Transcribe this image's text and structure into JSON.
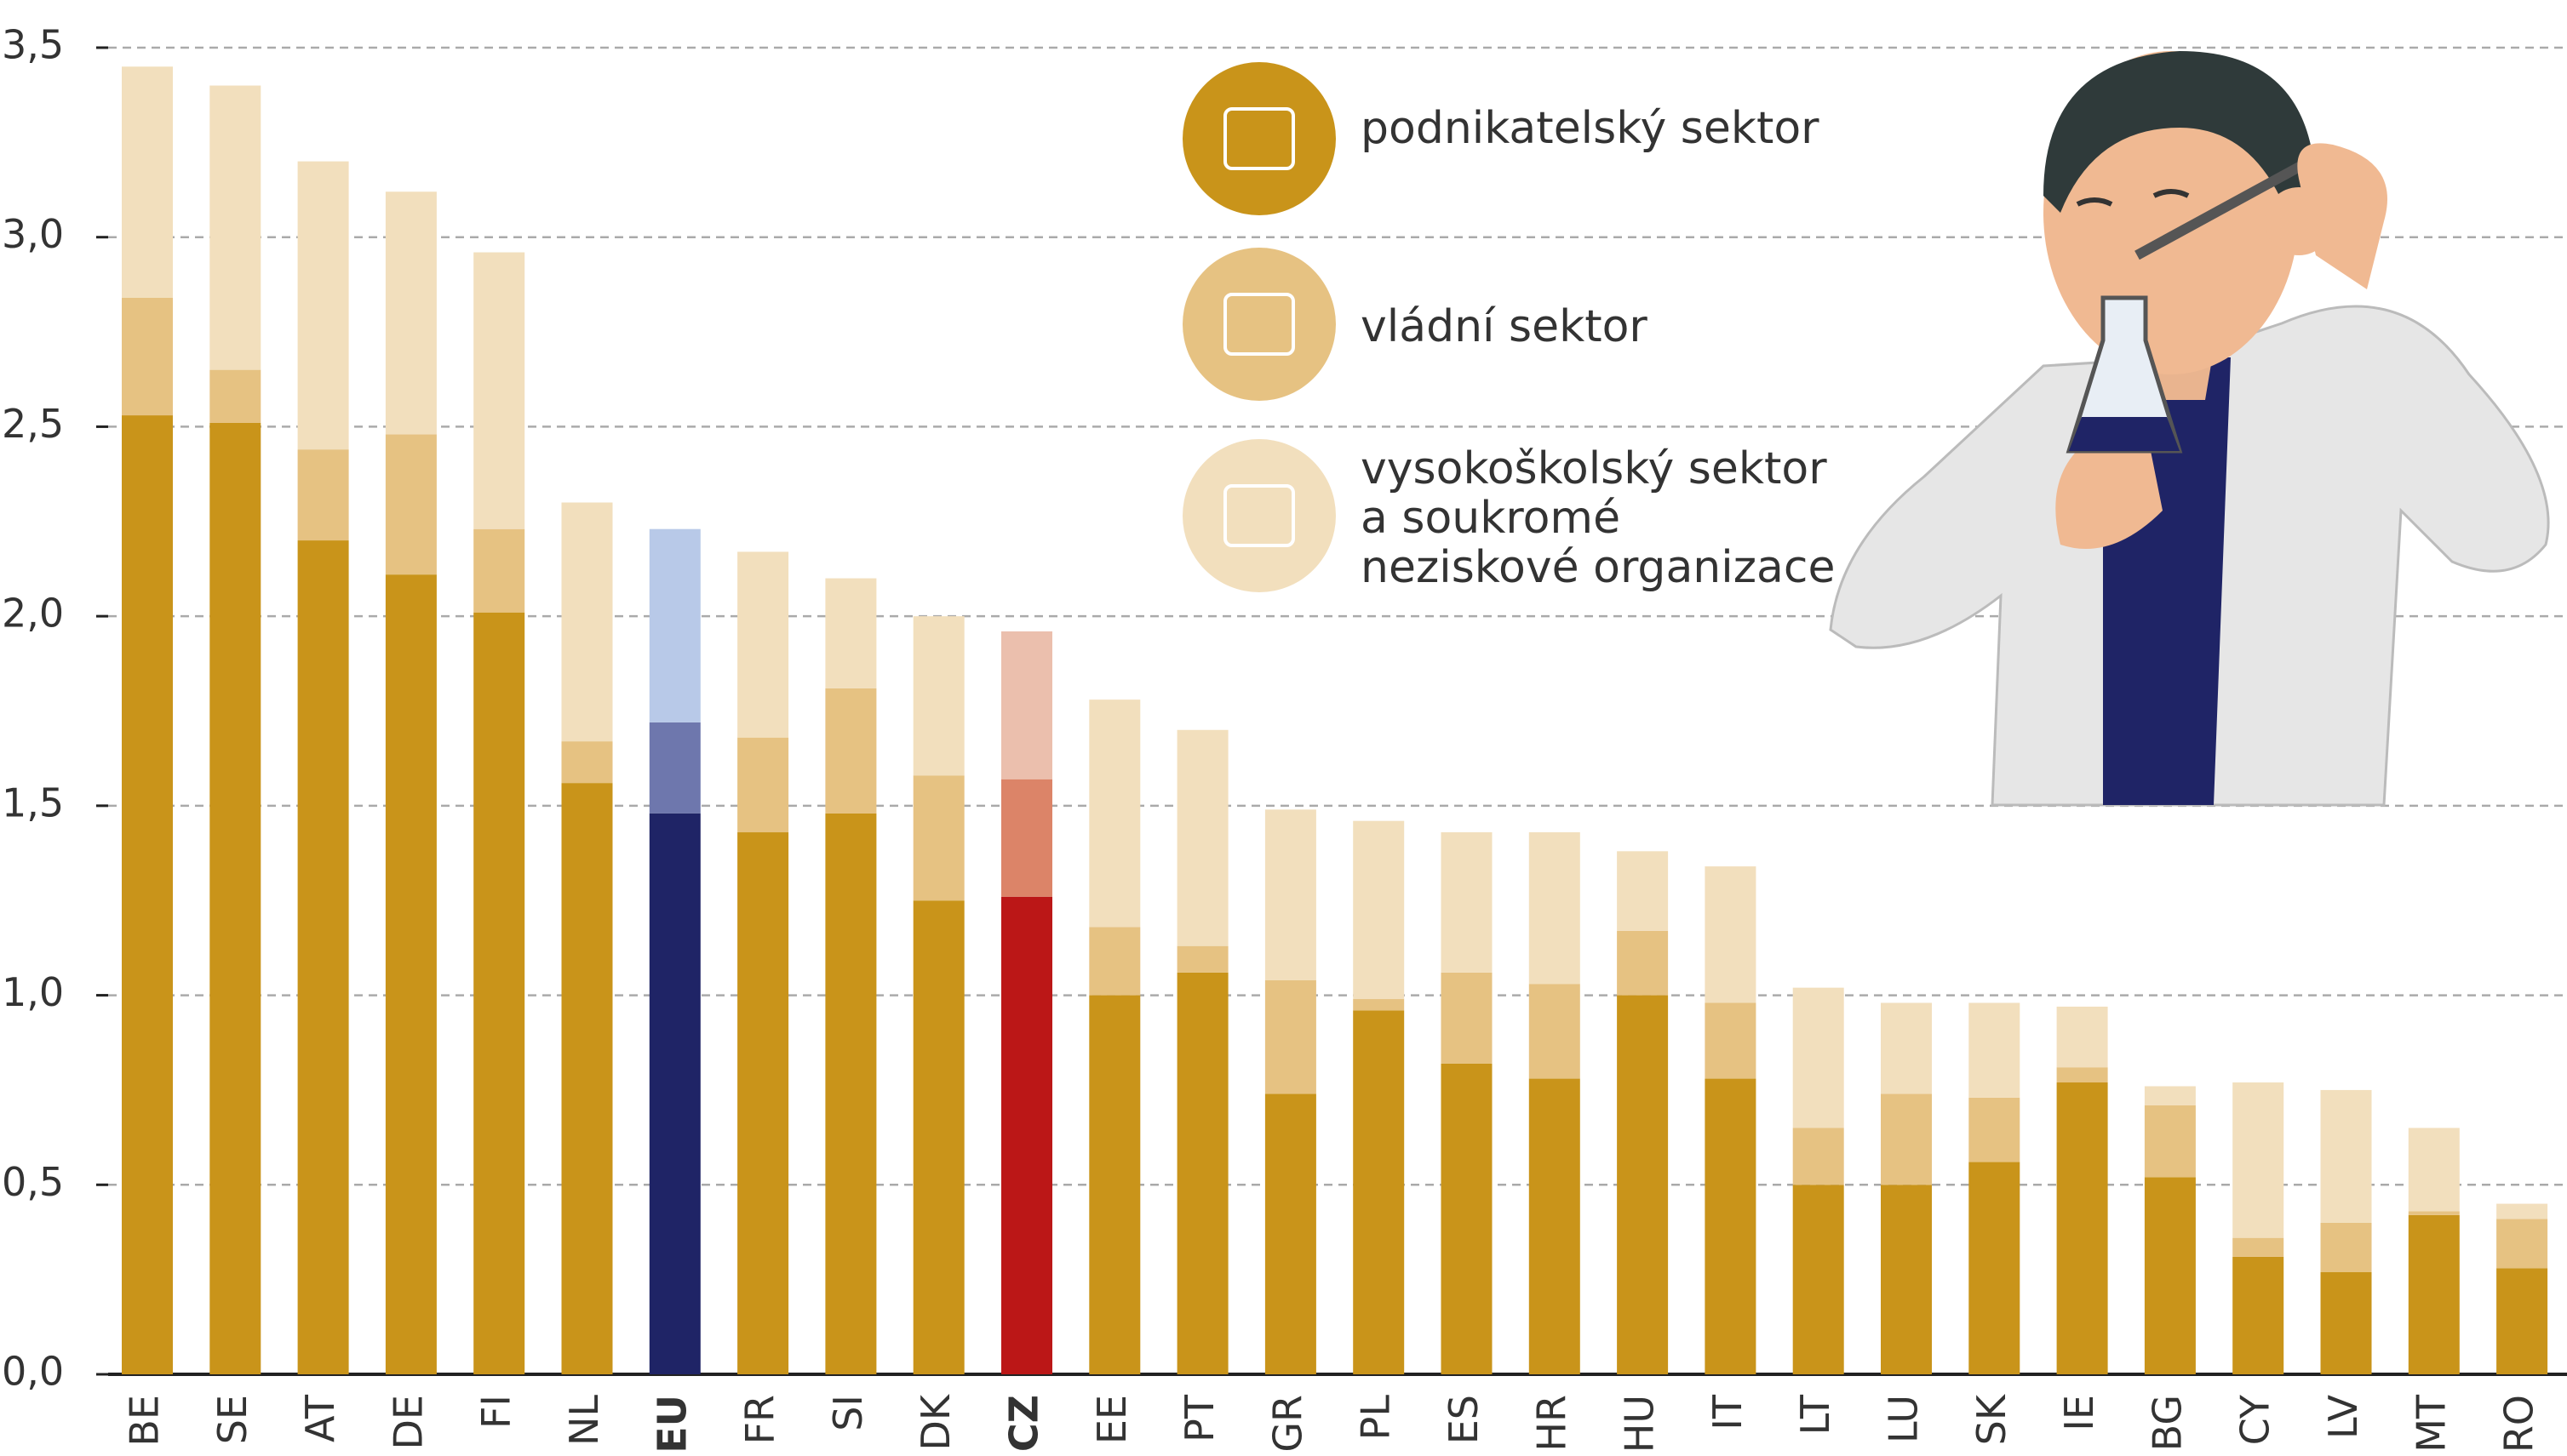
{
  "chart_data": {
    "type": "stacked_bar",
    "categories": [
      "BE",
      "SE",
      "AT",
      "DE",
      "FI",
      "NL",
      "EU",
      "FR",
      "SI",
      "DK",
      "CZ",
      "EE",
      "PT",
      "GR",
      "PL",
      "ES",
      "HR",
      "HU",
      "IT",
      "LT",
      "LU",
      "SK",
      "IE",
      "BG",
      "CY",
      "LV",
      "MT",
      "RO"
    ],
    "series": [
      {
        "name": "podnikatelský sektor",
        "color": "#c9941a",
        "values": [
          2.53,
          2.51,
          2.2,
          2.11,
          2.01,
          1.56,
          1.48,
          1.43,
          1.48,
          1.25,
          1.26,
          1.0,
          1.06,
          0.74,
          0.96,
          0.82,
          0.78,
          1.0,
          0.78,
          0.5,
          0.5,
          0.56,
          0.77,
          0.52,
          0.31,
          0.27,
          0.42,
          0.28
        ]
      },
      {
        "name": "vládní sektor",
        "color": "#e6c282",
        "values": [
          0.31,
          0.14,
          0.24,
          0.37,
          0.22,
          0.11,
          0.24,
          0.25,
          0.33,
          0.33,
          0.31,
          0.18,
          0.07,
          0.3,
          0.03,
          0.24,
          0.25,
          0.17,
          0.2,
          0.15,
          0.24,
          0.17,
          0.04,
          0.19,
          0.05,
          0.13,
          0.01,
          0.13
        ]
      },
      {
        "name": "vysokoškolský sektor a soukromé neziskové organizace",
        "color": "#f2dfbd",
        "values": [
          0.61,
          0.75,
          0.76,
          0.64,
          0.73,
          0.63,
          0.51,
          0.49,
          0.29,
          0.42,
          0.39,
          0.6,
          0.57,
          0.45,
          0.47,
          0.37,
          0.4,
          0.21,
          0.36,
          0.37,
          0.24,
          0.25,
          0.16,
          0.05,
          0.41,
          0.35,
          0.22,
          0.04
        ]
      }
    ],
    "highlights": {
      "EU": [
        "#1f2466",
        "#6e77ad",
        "#b8c9e8"
      ],
      "CZ": [
        "#bb1717",
        "#dc8468",
        "#ebbfad"
      ]
    },
    "ylim": [
      0,
      3.5
    ],
    "yticks": [
      {
        "value": 0,
        "label": "0,0"
      },
      {
        "value": 0.5,
        "label": "0,5"
      },
      {
        "value": 1,
        "label": "1,0"
      },
      {
        "value": 1.5,
        "label": "1,5"
      },
      {
        "value": 2,
        "label": "2,0"
      },
      {
        "value": 2.5,
        "label": "2,5"
      },
      {
        "value": 3,
        "label": "3,0"
      },
      {
        "value": 3.5,
        "label": "3,5"
      }
    ],
    "grid": true
  }
}
